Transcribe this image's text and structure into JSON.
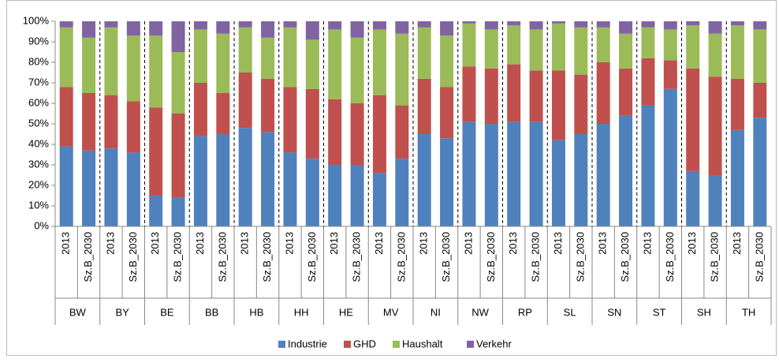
{
  "chart_data": {
    "type": "stacked_bar",
    "categories": [
      "2013",
      "Sz.B_2030",
      "2013",
      "Sz.B_2030",
      "2013",
      "Sz.B_2030",
      "2013",
      "Sz.B_2030",
      "2013",
      "Sz.B_2030",
      "2013",
      "Sz.B_2030",
      "2013",
      "Sz.B_2030",
      "2013",
      "Sz.B_2030",
      "2013",
      "Sz.B_2030",
      "2013",
      "Sz.B_2030",
      "2013",
      "Sz.B_2030",
      "2013",
      "Sz.B_2030",
      "2013",
      "Sz.B_2030",
      "2013",
      "Sz.B_2030",
      "2013",
      "Sz.B_2030",
      "2013",
      "Sz.B_2030"
    ],
    "groups": [
      "BW",
      "BY",
      "BE",
      "BB",
      "HB",
      "HH",
      "HE",
      "MV",
      "NI",
      "NW",
      "RP",
      "SL",
      "SN",
      "ST",
      "SH",
      "TH"
    ],
    "series": [
      {
        "name": "Industrie",
        "color": "#4f81bd",
        "values": [
          39,
          37,
          38,
          36,
          15,
          14,
          44,
          45,
          48,
          46,
          36,
          33,
          30,
          30,
          26,
          33,
          45,
          43,
          51,
          50,
          51,
          51,
          42,
          45,
          50,
          54,
          59,
          67,
          27,
          25,
          47,
          53
        ]
      },
      {
        "name": "GHD",
        "color": "#c0504d",
        "values": [
          29,
          28,
          26,
          25,
          43,
          41,
          26,
          20,
          27,
          26,
          32,
          34,
          32,
          30,
          38,
          26,
          27,
          25,
          27,
          27,
          28,
          25,
          34,
          29,
          30,
          23,
          23,
          14,
          50,
          48,
          25,
          17
        ]
      },
      {
        "name": "Haushalt",
        "color": "#9bbb59",
        "values": [
          29,
          27,
          33,
          32,
          35,
          30,
          26,
          29,
          22,
          20,
          29,
          24,
          34,
          32,
          32,
          35,
          25,
          25,
          21,
          19,
          19,
          20,
          23,
          23,
          17,
          17,
          15,
          15,
          21,
          21,
          26,
          26
        ]
      },
      {
        "name": "Verkehr",
        "color": "#8064a2",
        "values": [
          3,
          8,
          3,
          7,
          7,
          15,
          4,
          6,
          3,
          8,
          3,
          9,
          4,
          8,
          4,
          6,
          3,
          7,
          1,
          4,
          2,
          4,
          1,
          3,
          3,
          6,
          3,
          4,
          2,
          6,
          2,
          4
        ]
      }
    ],
    "ylim": [
      0,
      100
    ],
    "yticks": [
      {
        "value": 0,
        "label": "0%"
      },
      {
        "value": 10,
        "label": "10%"
      },
      {
        "value": 20,
        "label": "20%"
      },
      {
        "value": 30,
        "label": "30%"
      },
      {
        "value": 40,
        "label": "40%"
      },
      {
        "value": 50,
        "label": "50%"
      },
      {
        "value": 60,
        "label": "60%"
      },
      {
        "value": 70,
        "label": "70%"
      },
      {
        "value": 80,
        "label": "80%"
      },
      {
        "value": 90,
        "label": "90%"
      },
      {
        "value": 100,
        "label": "100%"
      }
    ],
    "grid": false,
    "legend": "bottom"
  }
}
